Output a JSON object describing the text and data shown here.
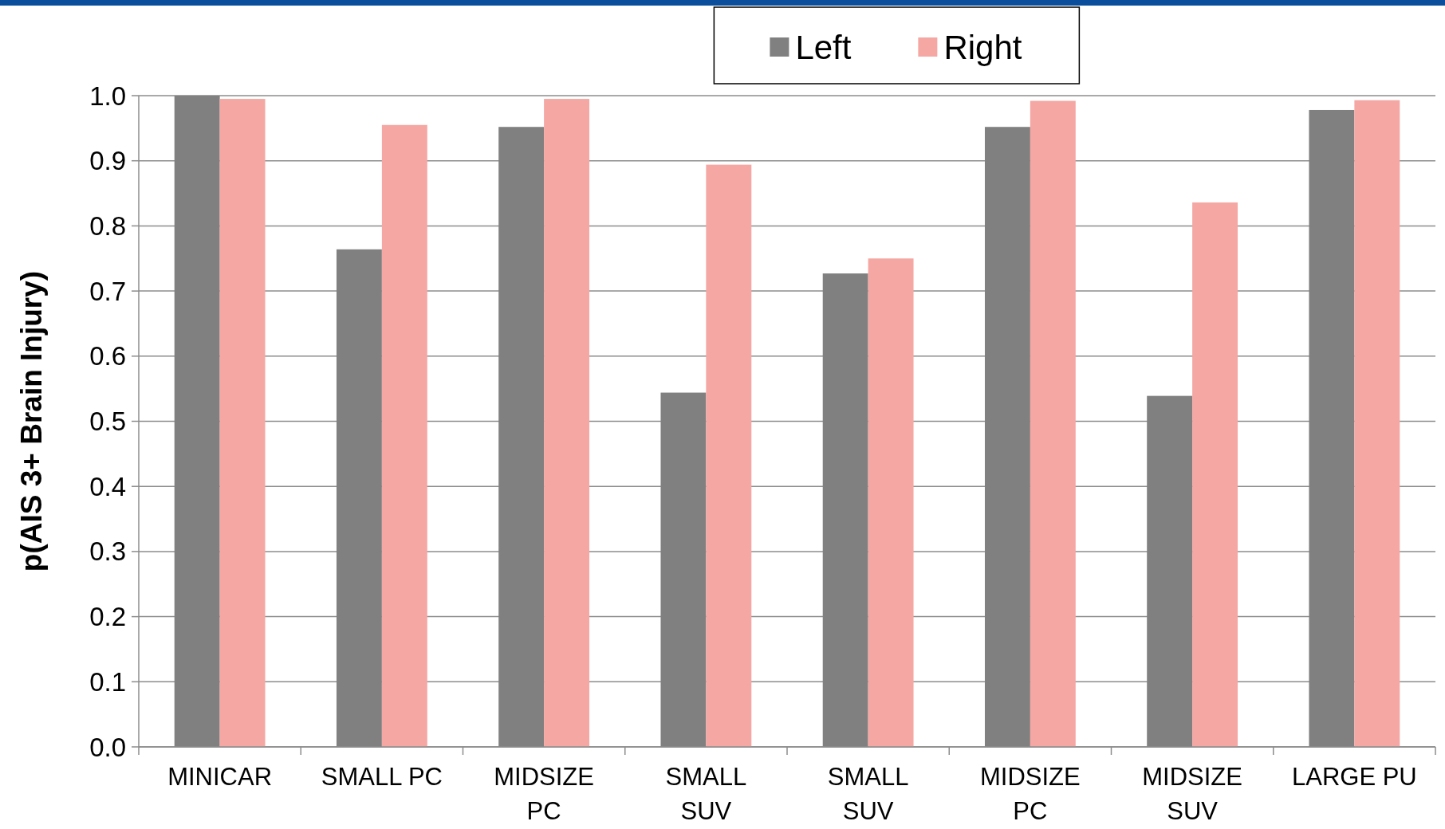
{
  "chart_data": {
    "type": "bar",
    "ylabel": "p(AIS 3+ Brain Injury)",
    "categories": [
      "MINICAR",
      "SMALL PC",
      "MIDSIZE\nPC",
      "SMALL\nSUV",
      "SMALL\nSUV",
      "MIDSIZE\nPC",
      "MIDSIZE\nSUV",
      "LARGE PU"
    ],
    "series": [
      {
        "name": "Left",
        "color": "#808080",
        "values": [
          1.0,
          0.764,
          0.952,
          0.544,
          0.727,
          0.952,
          0.539,
          0.978
        ]
      },
      {
        "name": "Right",
        "color": "#f4a7a3",
        "values": [
          0.995,
          0.955,
          0.995,
          0.894,
          0.75,
          0.992,
          0.836,
          0.993
        ]
      }
    ],
    "ylim": [
      0,
      1
    ],
    "yticks": [
      {
        "value": 0,
        "label": "0.0"
      },
      0.1,
      0.2,
      0.3,
      0.4,
      0.5,
      0.6,
      0.7,
      0.8,
      0.9,
      {
        "value": 1,
        "label": "1.0"
      }
    ],
    "grid": "y",
    "legend": "top"
  }
}
